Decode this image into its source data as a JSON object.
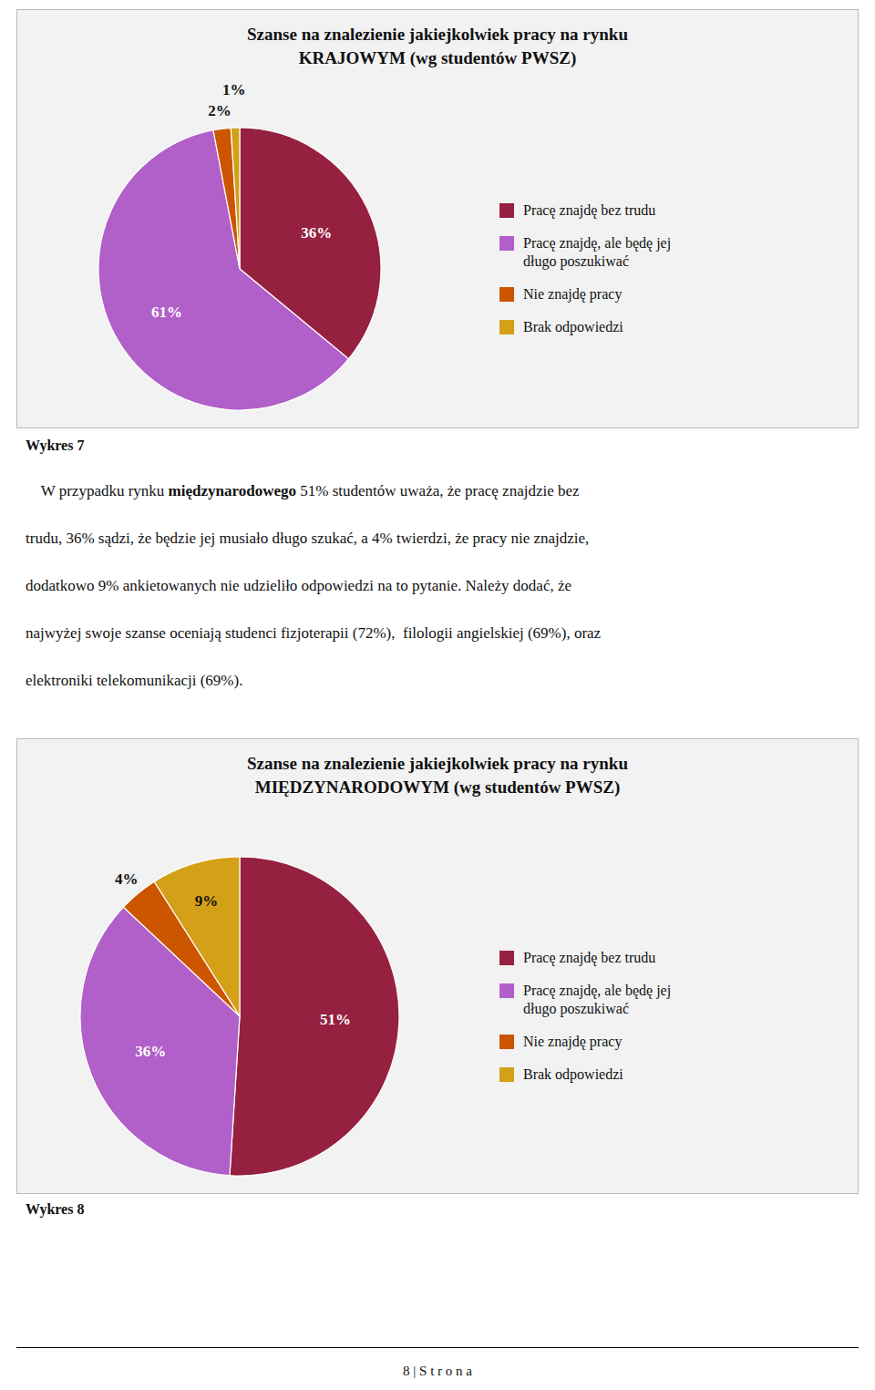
{
  "chart_data": [
    {
      "type": "pie",
      "title": "Szanse na znalezienie jakiejkolwiek pracy na rynku",
      "subtitle": "KRAJOWYM (wg studentów PWSZ)",
      "categories": [
        "Pracę znajdę bez trudu",
        "Pracę znajdę, ale będę jej\ndługo poszukiwać",
        "Nie znajdę pracy",
        "Brak odpowiedzi"
      ],
      "values": [
        36,
        61,
        2,
        1
      ],
      "value_labels": [
        "36%",
        "61%",
        "2%",
        "1%"
      ],
      "colors": [
        "#962040",
        "#B060C8",
        "#CC5500",
        "#D4A017"
      ],
      "data_labels": true,
      "legend": "right"
    },
    {
      "type": "pie",
      "title": "Szanse na znalezienie jakiejkolwiek pracy na rynku",
      "subtitle": "MIĘDZYNARODOWYM (wg studentów PWSZ)",
      "categories": [
        "Pracę znajdę bez trudu",
        "Pracę znajdę, ale będę jej\ndługo poszukiwać",
        "Nie znajdę pracy",
        "Brak odpowiedzi"
      ],
      "values": [
        51,
        36,
        4,
        9
      ],
      "value_labels": [
        "51%",
        "36%",
        "4%",
        "9%"
      ],
      "colors": [
        "#962040",
        "#B060C8",
        "#CC5500",
        "#D4A017"
      ],
      "data_labels": true,
      "legend": "right"
    }
  ],
  "page": {
    "captions": [
      "Wykres 7",
      "Wykres 8"
    ],
    "paragraph": [
      [
        "    W przypadku rynku ",
        "międzynarodowego",
        " 51% studentów uważa, że pracę znajdzie bez"
      ],
      [
        "trudu, 36% sądzi, że będzie jej musiało długo szukać, a 4% twierdzi, że pracy nie znajdzie,"
      ],
      [
        "dodatkowo 9% ankietowanych nie udzieliło odpowiedzi na to pytanie. Należy dodać, że"
      ],
      [
        "najwyżej swoje szanse oceniają studenci fizjoterapii (72%),  filologii angielskiej (69%), oraz"
      ],
      [
        "elektroniki telekomunikacji (69%)."
      ]
    ],
    "footer": "8 | S t r o n a"
  }
}
